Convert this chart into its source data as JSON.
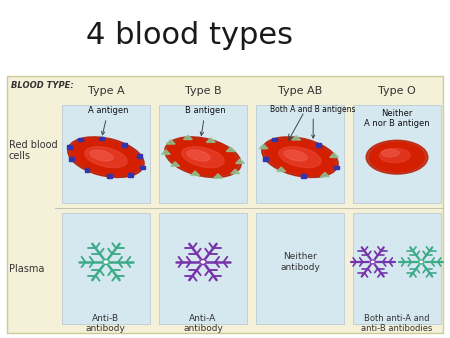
{
  "title": "4 blood types",
  "title_fontsize": 22,
  "title_color": "#1a1a1a",
  "bg_white": "#FFFFFF",
  "table_bg": "#F5F0D8",
  "cell_bg": "#D5E8F0",
  "blood_type_label": "BLOOD TYPE:",
  "blood_types": [
    "Type A",
    "Type B",
    "Type AB",
    "Type O"
  ],
  "row_labels": [
    "Red blood\ncells",
    "Plasma"
  ],
  "rbc_labels": [
    "A antigen",
    "B antigen",
    "Both A and B antigens",
    "Neither\nA nor B antigen"
  ],
  "plasma_labels": [
    "Anti-B\nantibody",
    "Anti-A\nantibody",
    "Neither\nantibody",
    "Both anti-A and\nanti-B antibodies"
  ],
  "rbc_dark": "#B81800",
  "rbc_mid": "#D42000",
  "rbc_light": "#E84030",
  "rbc_highlight": "#F06050",
  "antigen_a_color": "#3333AA",
  "antigen_b_color": "#90C090",
  "antibody_teal": "#3DAA88",
  "antibody_purple": "#7733AA",
  "text_dark": "#222222",
  "text_label": "#333333",
  "label_fontsize": 6.5,
  "header_fontsize": 8,
  "row_label_fontsize": 7,
  "annotation_fontsize": 6
}
